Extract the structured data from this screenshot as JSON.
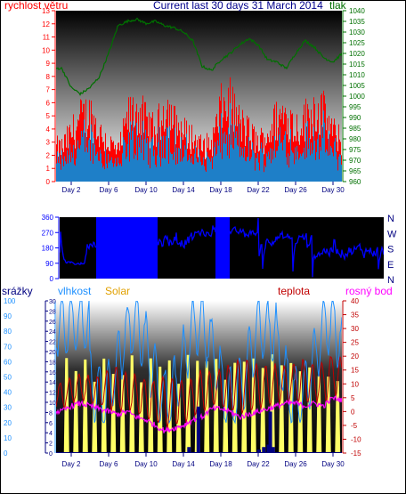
{
  "header": {
    "left_label": "rychlost větru",
    "title": "Current last 30 days 31 March 2014",
    "right_label": "tlak"
  },
  "colors": {
    "wind_speed": "#ff0000",
    "wind_gust_avg": "#1e7fc8",
    "pressure": "#007000",
    "wind_dir": "#0000ff",
    "rain": "#000080",
    "humidity": "#1e90ff",
    "solar": "#ffff66",
    "temperature": "#c00000",
    "dew_point": "#ff00ff",
    "date_labels": "#000080"
  },
  "chart_data": [
    {
      "type": "area",
      "name": "wind-pressure-panel",
      "x_ticks": [
        "Day 2",
        "Day 6",
        "Day 10",
        "Day 14",
        "Day 18",
        "Day 22",
        "Day 26",
        "Day 30"
      ],
      "y_left_label": "rychlost větru",
      "y_left_ticks": [
        0,
        1,
        2,
        3,
        4,
        5,
        6,
        7,
        8,
        9,
        10,
        11,
        12,
        13
      ],
      "y_left_range": [
        0,
        13
      ],
      "y_right_label": "tlak",
      "y_right_ticks": [
        960,
        965,
        970,
        975,
        980,
        985,
        990,
        995,
        1000,
        1005,
        1010,
        1015,
        1020,
        1025,
        1030,
        1035,
        1040
      ],
      "y_right_range": [
        960,
        1040
      ],
      "pressure_keypoints": [
        [
          1,
          1013
        ],
        [
          2,
          1004
        ],
        [
          3,
          1001
        ],
        [
          4,
          1004
        ],
        [
          5,
          1009
        ],
        [
          6,
          1020
        ],
        [
          7,
          1033
        ],
        [
          8,
          1035
        ],
        [
          9,
          1036
        ],
        [
          10,
          1034
        ],
        [
          11,
          1035
        ],
        [
          12,
          1033
        ],
        [
          13,
          1032
        ],
        [
          14,
          1030
        ],
        [
          15,
          1026
        ],
        [
          16,
          1014
        ],
        [
          17,
          1012
        ],
        [
          18,
          1017
        ],
        [
          19,
          1020
        ],
        [
          20,
          1024
        ],
        [
          21,
          1027
        ],
        [
          22,
          1024
        ],
        [
          23,
          1017
        ],
        [
          24,
          1016
        ],
        [
          25,
          1013
        ],
        [
          26,
          1020
        ],
        [
          27,
          1026
        ],
        [
          28,
          1023
        ],
        [
          29,
          1018
        ],
        [
          30,
          1016
        ],
        [
          31,
          1020
        ],
        [
          32,
          1024
        ],
        [
          33,
          1018
        ],
        [
          34,
          1014
        ]
      ],
      "wind_peak_keypoints": [
        [
          1,
          3.5
        ],
        [
          2,
          5
        ],
        [
          3,
          6.5
        ],
        [
          4,
          7
        ],
        [
          5,
          5
        ],
        [
          6,
          4
        ],
        [
          7,
          3
        ],
        [
          8,
          6.5
        ],
        [
          9,
          7.5
        ],
        [
          10,
          6
        ],
        [
          11,
          5
        ],
        [
          12,
          8
        ],
        [
          13,
          6
        ],
        [
          14,
          5
        ],
        [
          15,
          4.5
        ],
        [
          16,
          3.5
        ],
        [
          17,
          4
        ],
        [
          18,
          7.5
        ],
        [
          19,
          8
        ],
        [
          20,
          6
        ],
        [
          21,
          5
        ],
        [
          22,
          4
        ],
        [
          23,
          5
        ],
        [
          24,
          6.5
        ],
        [
          25,
          7
        ],
        [
          26,
          5.5
        ],
        [
          27,
          6.5
        ],
        [
          28,
          7.5
        ],
        [
          29,
          7
        ],
        [
          30,
          5
        ],
        [
          31,
          4
        ],
        [
          32,
          4.5
        ],
        [
          33,
          5
        ],
        [
          34,
          3.5
        ]
      ]
    },
    {
      "type": "line",
      "name": "wind-direction-panel",
      "y_ticks": [
        0,
        90,
        180,
        270,
        360
      ],
      "y_range": [
        0,
        360
      ],
      "compass_labels": [
        "N",
        "W",
        "S",
        "E",
        "N"
      ]
    },
    {
      "type": "line",
      "name": "weather-panel",
      "x_ticks": [
        "Day 2",
        "Day 6",
        "Day 10",
        "Day 14",
        "Day 18",
        "Day 22",
        "Day 26",
        "Day 30"
      ],
      "labels": {
        "rain": "srážky",
        "humidity": "vlhkost",
        "solar": "Solar",
        "temperature": "teplota",
        "dew_point": "rosný bod"
      },
      "y_rain_ticks": [
        0,
        2,
        4,
        6,
        8,
        10,
        12,
        14,
        16,
        18,
        20,
        22,
        24,
        26,
        28,
        30
      ],
      "y_rain_range": [
        0,
        30
      ],
      "y_humidity_ticks": [
        0,
        10,
        20,
        30,
        40,
        50,
        60,
        70,
        80,
        90,
        100
      ],
      "y_humidity_range": [
        0,
        100
      ],
      "y_temp_ticks": [
        -15,
        -10,
        -5,
        0,
        5,
        10,
        15,
        20,
        25,
        30,
        35,
        40
      ],
      "y_temp_range": [
        -15,
        40
      ],
      "temp_max_keypoints": [
        [
          1,
          10
        ],
        [
          2,
          12
        ],
        [
          3,
          14
        ],
        [
          4,
          13
        ],
        [
          5,
          12
        ],
        [
          6,
          15
        ],
        [
          7,
          16
        ],
        [
          8,
          14
        ],
        [
          9,
          13
        ],
        [
          10,
          12
        ],
        [
          11,
          11
        ],
        [
          12,
          13
        ],
        [
          13,
          12
        ],
        [
          14,
          11
        ],
        [
          15,
          12
        ],
        [
          16,
          15
        ],
        [
          17,
          14
        ],
        [
          18,
          15
        ],
        [
          19,
          17
        ],
        [
          20,
          19
        ],
        [
          21,
          18
        ],
        [
          22,
          17
        ],
        [
          23,
          16
        ],
        [
          24,
          17
        ],
        [
          25,
          16
        ],
        [
          26,
          18
        ],
        [
          27,
          19
        ],
        [
          28,
          17
        ],
        [
          29,
          18
        ],
        [
          30,
          21
        ],
        [
          31,
          19
        ],
        [
          32,
          17
        ],
        [
          33,
          16
        ],
        [
          34,
          15
        ]
      ],
      "dew_keypoints": [
        [
          1,
          0
        ],
        [
          2,
          2
        ],
        [
          3,
          3
        ],
        [
          4,
          2
        ],
        [
          5,
          1
        ],
        [
          6,
          0
        ],
        [
          7,
          -1
        ],
        [
          8,
          0
        ],
        [
          9,
          -2
        ],
        [
          10,
          -3
        ],
        [
          11,
          -5
        ],
        [
          12,
          -7
        ],
        [
          13,
          -6
        ],
        [
          14,
          -5
        ],
        [
          15,
          -3
        ],
        [
          16,
          -2
        ],
        [
          17,
          1
        ],
        [
          18,
          1
        ],
        [
          19,
          0
        ],
        [
          20,
          -2
        ],
        [
          21,
          -1
        ],
        [
          22,
          0
        ],
        [
          23,
          1
        ],
        [
          24,
          2
        ],
        [
          25,
          3
        ],
        [
          26,
          3
        ],
        [
          27,
          2
        ],
        [
          28,
          3
        ],
        [
          29,
          2
        ],
        [
          30,
          5
        ],
        [
          31,
          4
        ],
        [
          32,
          3
        ],
        [
          33,
          3
        ],
        [
          34,
          2
        ]
      ],
      "rain_keypoints": [
        [
          14.5,
          1
        ],
        [
          15.5,
          9
        ],
        [
          16,
          0
        ],
        [
          22,
          0.5
        ],
        [
          22.5,
          1
        ],
        [
          23,
          1.5
        ],
        [
          23.2,
          8
        ],
        [
          23.5,
          1
        ]
      ]
    }
  ]
}
